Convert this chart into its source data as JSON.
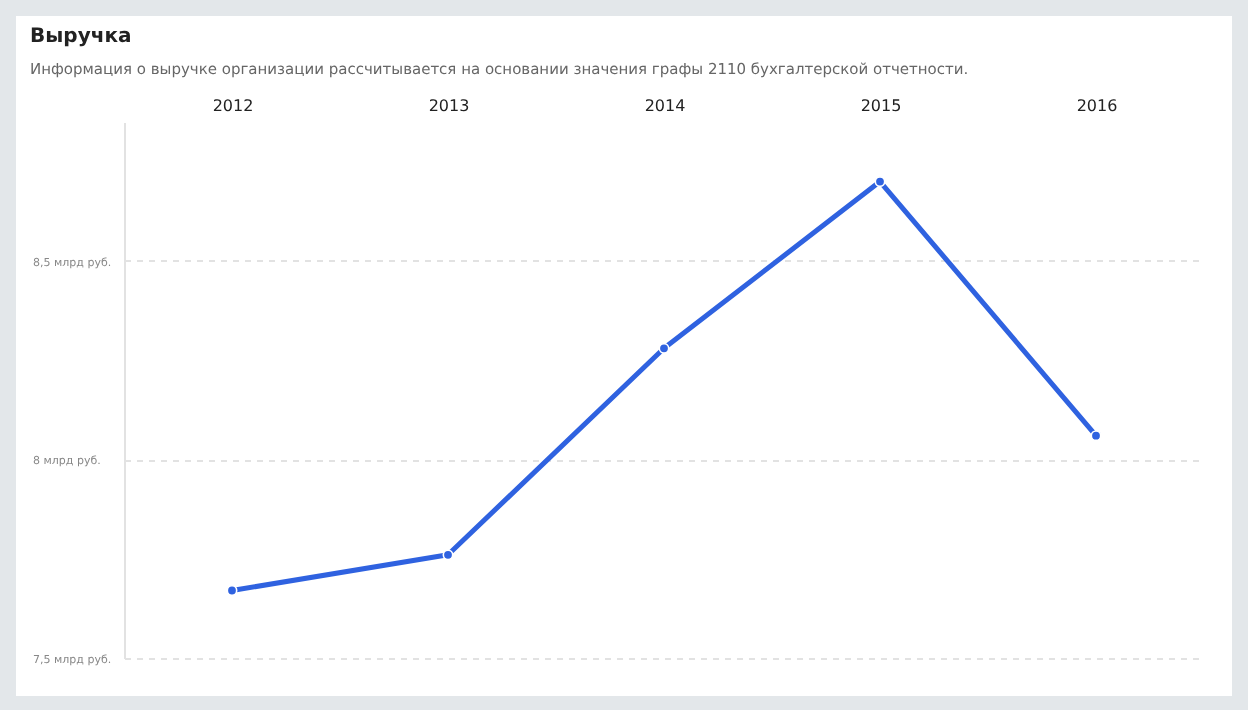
{
  "chart_data": {
    "type": "line",
    "title": "Выручка",
    "subtitle": "Информация о выручке организации рассчитывается на основании значения графы 2110 бухгалтерской отчетности.",
    "categories": [
      "2012",
      "2013",
      "2014",
      "2015",
      "2016"
    ],
    "series": [
      {
        "color": "#2f62e0",
        "values": [
          7.67,
          7.76,
          8.28,
          8.7,
          8.06
        ]
      }
    ],
    "ylim": [
      7.5,
      8.85
    ],
    "yticks": [
      {
        "value": 7.5,
        "label": "7,5 млрд руб."
      },
      {
        "value": 8,
        "label": "8 млрд руб."
      },
      {
        "value": 8.5,
        "label": "8,5 млрд руб."
      }
    ],
    "grid": "y",
    "marker": "circle",
    "line_style": "solid",
    "legend": false
  }
}
